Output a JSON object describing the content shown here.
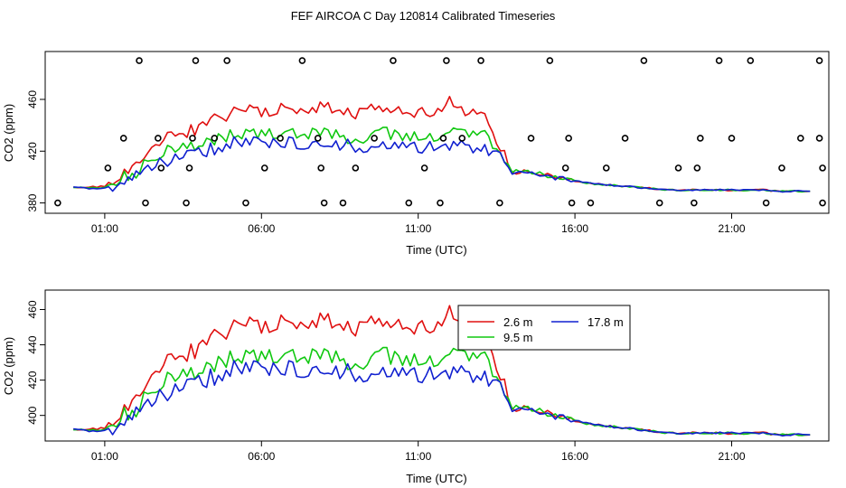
{
  "page": {
    "title": "FEF AIRCOA C  Day 120814  Calibrated Timeseries",
    "colors": {
      "series_2_6": "#e01010",
      "series_9_5": "#10c810",
      "series_17_8": "#1020d0",
      "axis": "#000000"
    }
  },
  "chart_data": [
    {
      "type": "line",
      "name": "top",
      "title": "",
      "xlabel": "Time (UTC)",
      "ylabel": "CO2 (ppm)",
      "xlim": [
        -0.9,
        24.1
      ],
      "ylim": [
        372,
        497
      ],
      "x_ticks": [
        1,
        6,
        11,
        16,
        21
      ],
      "x_tick_labels": [
        "01:00",
        "06:00",
        "11:00",
        "16:00",
        "21:00"
      ],
      "y_ticks": [
        380,
        420,
        460
      ],
      "y_tick_labels": [
        "380",
        "420",
        "460"
      ],
      "series": [
        {
          "name": "2.6 m",
          "color": "#e01010",
          "x": [
            0,
            0.5,
            1,
            1.5,
            2,
            2.5,
            3,
            3.5,
            4,
            4.5,
            5,
            5.5,
            6,
            6.5,
            7,
            7.5,
            8,
            8.5,
            9,
            9.5,
            10,
            10.5,
            11,
            11.5,
            12,
            12.5,
            13,
            13.5,
            14,
            14.5,
            15,
            15.5,
            16,
            16.5,
            17,
            17.5,
            18,
            18.5,
            19,
            19.5,
            20,
            20.5,
            21,
            21.5,
            22,
            22.5,
            23,
            23.5
          ],
          "values": [
            392,
            392,
            393,
            403,
            410,
            420,
            430,
            433,
            438,
            444,
            448,
            452,
            451,
            452,
            454,
            453,
            456,
            452,
            450,
            452,
            455,
            452,
            450,
            452,
            458,
            451,
            454,
            430,
            404,
            404,
            402,
            399,
            397,
            395,
            394,
            393,
            392,
            391,
            390,
            390,
            390,
            390,
            390,
            390,
            390,
            389,
            389,
            389
          ]
        },
        {
          "name": "9.5 m",
          "color": "#10c810",
          "x": [
            0,
            0.5,
            1,
            1.5,
            2,
            2.5,
            3,
            3.5,
            4,
            4.5,
            5,
            5.5,
            6,
            6.5,
            7,
            7.5,
            8,
            8.5,
            9,
            9.5,
            10,
            10.5,
            11,
            11.5,
            12,
            12.5,
            13,
            13.5,
            14,
            14.5,
            15,
            15.5,
            16,
            16.5,
            17,
            17.5,
            18,
            18.5,
            19,
            19.5,
            20,
            20.5,
            21,
            21.5,
            22,
            22.5,
            23,
            23.5
          ],
          "values": [
            392,
            392,
            392,
            400,
            404,
            414,
            420,
            422,
            425,
            428,
            432,
            434,
            432,
            433,
            434,
            432,
            435,
            432,
            430,
            432,
            434,
            432,
            430,
            432,
            436,
            432,
            434,
            424,
            404,
            404,
            402,
            399,
            397,
            395,
            394,
            393,
            392,
            391,
            390,
            390,
            390,
            390,
            390,
            390,
            390,
            389,
            389,
            389
          ]
        },
        {
          "name": "17.8 m",
          "color": "#1020d0",
          "x": [
            0,
            0.5,
            1,
            1.5,
            2,
            2.5,
            3,
            3.5,
            4,
            4.5,
            5,
            5.5,
            6,
            6.5,
            7,
            7.5,
            8,
            8.5,
            9,
            9.5,
            10,
            10.5,
            11,
            11.5,
            12,
            12.5,
            13,
            13.5,
            14,
            14.5,
            15,
            15.5,
            16,
            16.5,
            17,
            17.5,
            18,
            18.5,
            19,
            19.5,
            20,
            20.5,
            21,
            21.5,
            22,
            22.5,
            23,
            23.5
          ],
          "values": [
            392,
            391,
            391,
            396,
            400,
            408,
            413,
            416,
            419,
            422,
            426,
            428,
            426,
            426,
            427,
            425,
            427,
            425,
            424,
            424,
            425,
            423,
            422,
            423,
            425,
            423,
            424,
            418,
            403,
            403,
            401,
            399,
            397,
            395,
            394,
            393,
            392,
            391,
            390,
            390,
            390,
            390,
            390,
            390,
            390,
            389,
            389,
            389
          ]
        }
      ],
      "markers": {
        "symbol": "open-circle",
        "x": [
          -0.5,
          1.1,
          1.6,
          2.1,
          2.3,
          2.7,
          2.8,
          3.6,
          3.7,
          3.8,
          3.9,
          4.5,
          4.9,
          5.5,
          6.1,
          6.6,
          7.3,
          7.8,
          7.9,
          8.0,
          8.6,
          9.0,
          9.6,
          10.2,
          10.7,
          11.2,
          11.7,
          11.8,
          11.9,
          12.4,
          13.0,
          13.6,
          14.6,
          15.2,
          15.7,
          15.8,
          15.9,
          16.5,
          17.0,
          17.6,
          18.2,
          18.7,
          19.3,
          19.8,
          19.9,
          20.0,
          20.6,
          21.0,
          21.6,
          22.1,
          22.6,
          23.2,
          23.8,
          23.8,
          23.9,
          23.9
        ],
        "y": [
          380,
          407,
          430,
          490,
          380,
          430,
          407,
          380,
          407,
          430,
          490,
          430,
          490,
          380,
          407,
          430,
          490,
          430,
          407,
          380,
          380,
          407,
          430,
          490,
          380,
          407,
          380,
          430,
          490,
          430,
          490,
          380,
          430,
          490,
          407,
          430,
          380,
          380,
          407,
          430,
          490,
          380,
          407,
          380,
          407,
          430,
          490,
          430,
          490,
          380,
          407,
          430,
          490,
          430,
          407,
          380
        ]
      }
    },
    {
      "type": "line",
      "name": "bottom",
      "title": "",
      "xlabel": "Time (UTC)",
      "ylabel": "CO2 (ppm)",
      "xlim": [
        -0.9,
        24.1
      ],
      "ylim": [
        385.5,
        471
      ],
      "x_ticks": [
        1,
        6,
        11,
        16,
        21
      ],
      "x_tick_labels": [
        "01:00",
        "06:00",
        "11:00",
        "16:00",
        "21:00"
      ],
      "y_ticks": [
        400,
        420,
        440,
        460
      ],
      "y_tick_labels": [
        "400",
        "420",
        "440",
        "460"
      ],
      "legend": {
        "placement": "top-right",
        "entries": [
          {
            "label": "2.6 m",
            "color": "#e01010"
          },
          {
            "label": "17.8 m",
            "color": "#1020d0"
          },
          {
            "label": "9.5 m",
            "color": "#10c810"
          }
        ]
      },
      "series": [
        {
          "name": "2.6 m",
          "color": "#e01010",
          "x": [
            0,
            0.5,
            1,
            1.5,
            2,
            2.5,
            3,
            3.5,
            4,
            4.5,
            5,
            5.5,
            6,
            6.5,
            7,
            7.5,
            8,
            8.5,
            9,
            9.5,
            10,
            10.5,
            11,
            11.5,
            12,
            12.5,
            13,
            13.5,
            14,
            14.5,
            15,
            15.5,
            16,
            16.5,
            17,
            17.5,
            18,
            18.5,
            19,
            19.5,
            20,
            20.5,
            21,
            21.5,
            22,
            22.5,
            23,
            23.5
          ],
          "values": [
            392,
            392,
            393,
            403,
            410,
            420,
            430,
            433,
            438,
            444,
            448,
            452,
            451,
            452,
            454,
            453,
            456,
            452,
            450,
            452,
            455,
            452,
            450,
            452,
            458,
            451,
            454,
            430,
            404,
            404,
            402,
            399,
            397,
            395,
            394,
            393,
            392,
            391,
            390,
            390,
            390,
            390,
            390,
            390,
            390,
            389,
            389,
            389
          ]
        },
        {
          "name": "9.5 m",
          "color": "#10c810",
          "x": [
            0,
            0.5,
            1,
            1.5,
            2,
            2.5,
            3,
            3.5,
            4,
            4.5,
            5,
            5.5,
            6,
            6.5,
            7,
            7.5,
            8,
            8.5,
            9,
            9.5,
            10,
            10.5,
            11,
            11.5,
            12,
            12.5,
            13,
            13.5,
            14,
            14.5,
            15,
            15.5,
            16,
            16.5,
            17,
            17.5,
            18,
            18.5,
            19,
            19.5,
            20,
            20.5,
            21,
            21.5,
            22,
            22.5,
            23,
            23.5
          ],
          "values": [
            392,
            392,
            392,
            400,
            404,
            414,
            420,
            422,
            425,
            428,
            432,
            434,
            432,
            433,
            434,
            432,
            435,
            432,
            430,
            432,
            434,
            432,
            430,
            432,
            436,
            432,
            434,
            424,
            404,
            404,
            402,
            399,
            397,
            395,
            394,
            393,
            392,
            391,
            390,
            390,
            390,
            390,
            390,
            390,
            390,
            389,
            389,
            389
          ]
        },
        {
          "name": "17.8 m",
          "color": "#1020d0",
          "x": [
            0,
            0.5,
            1,
            1.5,
            2,
            2.5,
            3,
            3.5,
            4,
            4.5,
            5,
            5.5,
            6,
            6.5,
            7,
            7.5,
            8,
            8.5,
            9,
            9.5,
            10,
            10.5,
            11,
            11.5,
            12,
            12.5,
            13,
            13.5,
            14,
            14.5,
            15,
            15.5,
            16,
            16.5,
            17,
            17.5,
            18,
            18.5,
            19,
            19.5,
            20,
            20.5,
            21,
            21.5,
            22,
            22.5,
            23,
            23.5
          ],
          "values": [
            392,
            391,
            391,
            396,
            400,
            408,
            413,
            416,
            419,
            422,
            426,
            428,
            426,
            426,
            427,
            425,
            427,
            425,
            424,
            424,
            425,
            423,
            422,
            423,
            425,
            423,
            424,
            418,
            403,
            403,
            401,
            399,
            397,
            395,
            394,
            393,
            392,
            391,
            390,
            390,
            390,
            390,
            390,
            390,
            390,
            389,
            389,
            389
          ]
        }
      ]
    }
  ]
}
